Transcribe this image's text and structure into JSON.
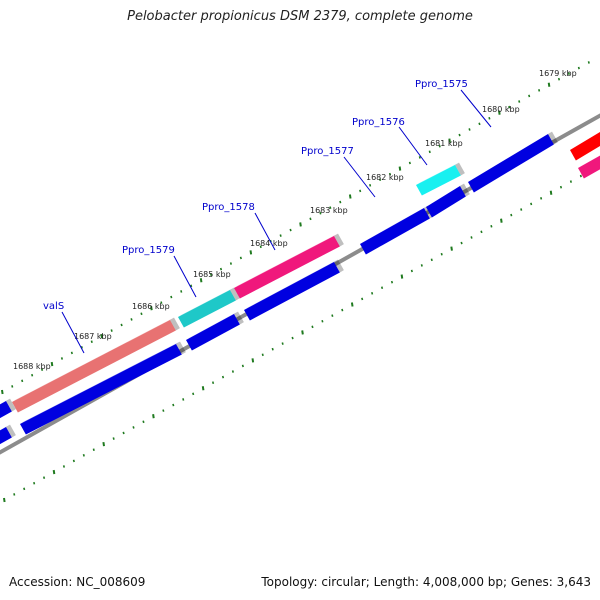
{
  "title": "Pelobacter propionicus DSM 2379, complete genome",
  "footer": {
    "accession": "Accession: NC_008609",
    "topology": "Topology: circular; Length: 4,008,000 bp; Genes: 3,643"
  },
  "ticks": [
    "1679 kbp",
    "1680 kbp",
    "1681 kbp",
    "1682 kbp",
    "1683 kbp",
    "1684 kbp",
    "1685 kbp",
    "1686 kbp",
    "1687 kbp",
    "1688 kbp"
  ],
  "gene_labels": [
    "Ppro_1575",
    "Ppro_1576",
    "Ppro_1577",
    "Ppro_1578",
    "Ppro_1579",
    "valS"
  ],
  "colors": {
    "backbone": "#8c8c8c",
    "dots": "#1f7a1f",
    "cds": "#0000e0",
    "label": "#0000cc",
    "salmon": "#e87272",
    "magenta": "#f0187c",
    "teal": "#1ec8c8",
    "cyan": "#18f0f0",
    "red": "#ff0000"
  }
}
